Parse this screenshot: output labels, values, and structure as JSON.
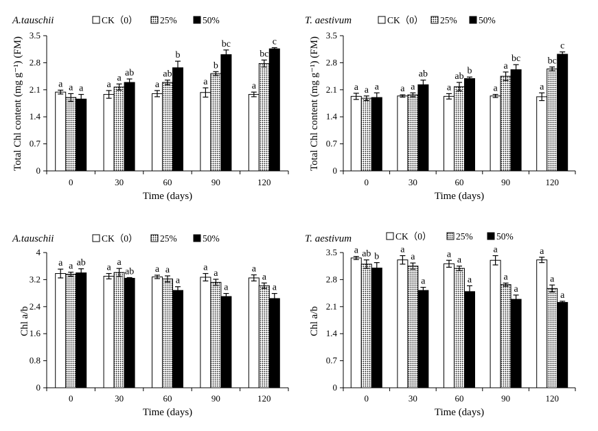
{
  "chart_data": [
    {
      "type": "bar",
      "title": "A.tauschii",
      "xlabel": "Time (days)",
      "ylabel": "Total Chl content (mg g⁻¹) (FM)",
      "categories": [
        "0",
        "30",
        "60",
        "90",
        "120"
      ],
      "ylim": [
        0,
        3.5
      ],
      "yticks": [
        "0",
        "0.7",
        "1.4",
        "2.1",
        "2.8",
        "3.5"
      ],
      "legend_position": "top",
      "series": [
        {
          "name": "CK（0）",
          "values": [
            2.04,
            1.98,
            2.0,
            2.03,
            1.98
          ],
          "errors": [
            0.05,
            0.1,
            0.08,
            0.12,
            0.06
          ],
          "letters": [
            "a",
            "a",
            "a",
            "a",
            "a"
          ]
        },
        {
          "name": "25%",
          "values": [
            1.9,
            2.17,
            2.29,
            2.52,
            2.78
          ],
          "errors": [
            0.1,
            0.08,
            0.06,
            0.05,
            0.09
          ],
          "letters": [
            "a",
            "a",
            "ab",
            "b",
            "bc"
          ]
        },
        {
          "name": "50%",
          "values": [
            1.86,
            2.29,
            2.67,
            3.01,
            3.16
          ],
          "errors": [
            0.12,
            0.09,
            0.17,
            0.12,
            0.03
          ],
          "letters": [
            "a",
            "ab",
            "b",
            "bc",
            "c"
          ]
        }
      ]
    },
    {
      "type": "bar",
      "title": "T. aestivum",
      "xlabel": "Time (days)",
      "ylabel": "Total Chl content (mg g⁻¹) (FM)",
      "categories": [
        "0",
        "30",
        "60",
        "90",
        "120"
      ],
      "ylim": [
        0,
        3.5
      ],
      "yticks": [
        "0",
        "0.7",
        "1.4",
        "2.1",
        "2.8",
        "3.5"
      ],
      "legend_position": "top",
      "series": [
        {
          "name": "CK（0）",
          "values": [
            1.93,
            1.94,
            1.93,
            1.94,
            1.92
          ],
          "errors": [
            0.08,
            0.03,
            0.07,
            0.04,
            0.1
          ],
          "letters": [
            "a",
            "a",
            "a",
            "a",
            "a"
          ]
        },
        {
          "name": "25%",
          "values": [
            1.88,
            1.97,
            2.18,
            2.45,
            2.64
          ],
          "errors": [
            0.06,
            0.05,
            0.11,
            0.11,
            0.05
          ],
          "letters": [
            "a",
            "a",
            "ab",
            "a",
            "bc"
          ]
        },
        {
          "name": "50%",
          "values": [
            1.9,
            2.23,
            2.39,
            2.62,
            3.02
          ],
          "errors": [
            0.12,
            0.12,
            0.04,
            0.13,
            0.06
          ],
          "letters": [
            "a",
            "ab",
            "b",
            "bc",
            "c"
          ]
        }
      ]
    },
    {
      "type": "bar",
      "title": "A.tauschii",
      "xlabel": "Time (days)",
      "ylabel": "Chl a/b",
      "categories": [
        "0",
        "30",
        "60",
        "90",
        "120"
      ],
      "ylim": [
        0,
        4
      ],
      "yticks": [
        "0",
        "0.8",
        "1.6",
        "2.4",
        "3.2",
        "4"
      ],
      "legend_position": "top",
      "series": [
        {
          "name": "CK（0）",
          "values": [
            3.38,
            3.3,
            3.28,
            3.27,
            3.25
          ],
          "errors": [
            0.13,
            0.08,
            0.05,
            0.11,
            0.09
          ],
          "letters": [
            "a",
            "a",
            "a",
            "a",
            "a"
          ]
        },
        {
          "name": "25%",
          "values": [
            3.36,
            3.41,
            3.22,
            3.12,
            3.02
          ],
          "errors": [
            0.06,
            0.12,
            0.09,
            0.09,
            0.08
          ],
          "letters": [
            "a",
            "a",
            "a",
            "a",
            "a"
          ]
        },
        {
          "name": "50%",
          "values": [
            3.4,
            3.24,
            2.88,
            2.7,
            2.64
          ],
          "errors": [
            0.12,
            0.02,
            0.11,
            0.09,
            0.15
          ],
          "letters": [
            "ab",
            "ab",
            "a",
            "a",
            "a"
          ]
        }
      ]
    },
    {
      "type": "bar",
      "title": "T. aestivum",
      "xlabel": "Time (days)",
      "ylabel": "Chl a/b",
      "categories": [
        "0",
        "30",
        "60",
        "90",
        "120"
      ],
      "ylim": [
        0,
        3.5
      ],
      "yticks": [
        "0",
        "0.7",
        "1.4",
        "2.1",
        "2.8",
        "3.5"
      ],
      "legend_position": "top",
      "series": [
        {
          "name": "CK（0）",
          "values": [
            3.36,
            3.31,
            3.21,
            3.3,
            3.31
          ],
          "errors": [
            0.04,
            0.11,
            0.09,
            0.12,
            0.07
          ],
          "letters": [
            "a",
            "a",
            "a",
            "a",
            "a"
          ]
        },
        {
          "name": "25%",
          "values": [
            3.2,
            3.15,
            3.09,
            2.67,
            2.57
          ],
          "errors": [
            0.11,
            0.08,
            0.06,
            0.04,
            0.09
          ],
          "letters": [
            "ab",
            "a",
            "a",
            "a",
            "a"
          ]
        },
        {
          "name": "50%",
          "values": [
            3.1,
            2.52,
            2.49,
            2.29,
            2.21
          ],
          "errors": [
            0.14,
            0.08,
            0.15,
            0.11,
            0.03
          ],
          "letters": [
            "b",
            "a",
            "a",
            "a",
            "a"
          ]
        }
      ]
    }
  ]
}
